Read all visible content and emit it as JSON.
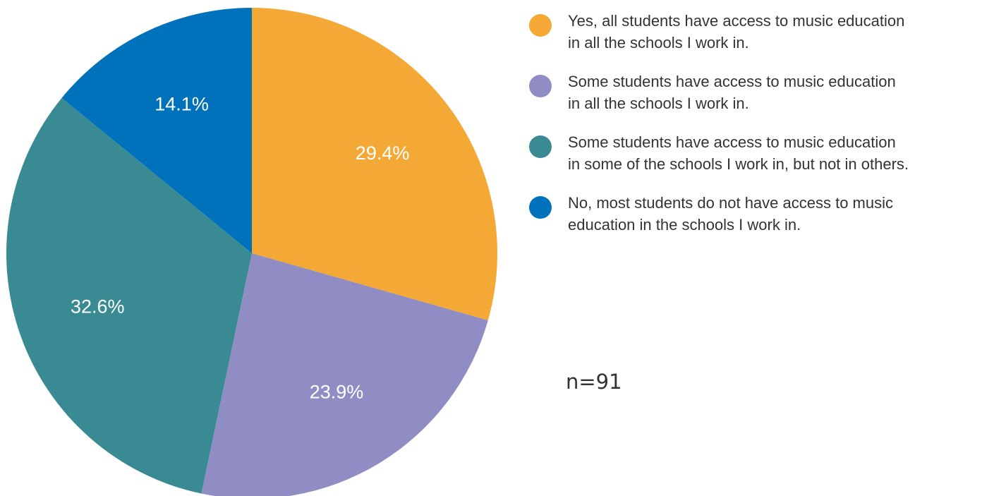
{
  "chart_data": {
    "type": "pie",
    "slices": [
      {
        "label": "Yes, all students have access to music education\nin all the schools I work in.",
        "value": 29.4,
        "display": "29.4%",
        "color": "#f4a937"
      },
      {
        "label": "Some students have access to music education\nin all the schools I work in.",
        "value": 23.9,
        "display": "23.9%",
        "color": "#8f8dc3"
      },
      {
        "label": "Some students have access to music education\nin some of the schools I work in, but not in others.",
        "value": 32.6,
        "display": "32.6%",
        "color": "#3a8a94"
      },
      {
        "label": "No, most students do not have access to music\neducation in the schools I work in.",
        "value": 14.1,
        "display": "14.1%",
        "color": "#0071bb"
      }
    ],
    "legend_position": "right",
    "start": "12 o'clock",
    "direction": "clockwise"
  },
  "annotation": "n=91"
}
